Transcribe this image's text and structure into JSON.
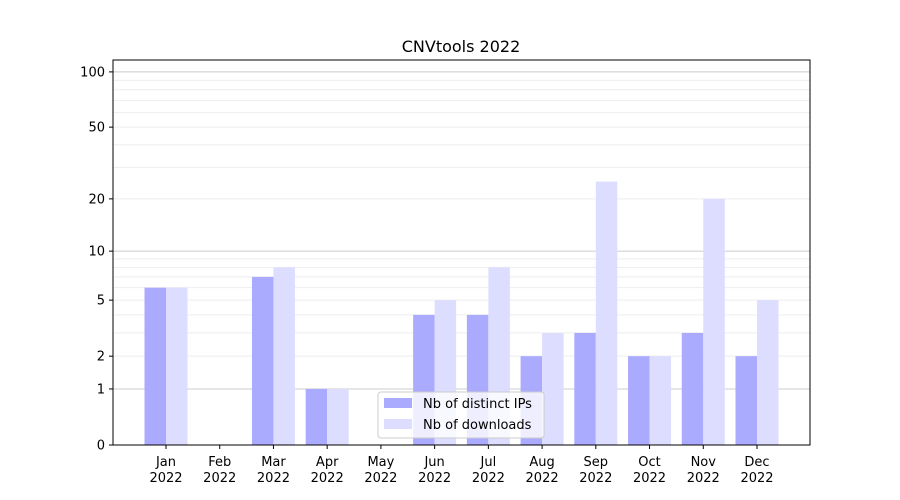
{
  "chart_data": {
    "type": "bar",
    "title": "CNVtools 2022",
    "xlabel": "",
    "ylabel": "",
    "yscale": "log(1+y)",
    "ylim": [
      0,
      116
    ],
    "yticks": [
      0,
      1,
      2,
      5,
      10,
      20,
      50,
      100
    ],
    "grid": true,
    "legend_placement": "bottom-center",
    "categories": [
      "Jan\n2022",
      "Feb\n2022",
      "Mar\n2022",
      "Apr\n2022",
      "May\n2022",
      "Jun\n2022",
      "Jul\n2022",
      "Aug\n2022",
      "Sep\n2022",
      "Oct\n2022",
      "Nov\n2022",
      "Dec\n2022"
    ],
    "series": [
      {
        "name": "Nb of distinct IPs",
        "color": "#aaaaff",
        "values": [
          6,
          0,
          7,
          1,
          0,
          4,
          4,
          2,
          3,
          2,
          3,
          2
        ]
      },
      {
        "name": "Nb of downloads",
        "color": "#ddddff",
        "values": [
          6,
          0,
          8,
          1,
          0,
          5,
          8,
          3,
          25,
          2,
          20,
          5
        ]
      }
    ]
  }
}
